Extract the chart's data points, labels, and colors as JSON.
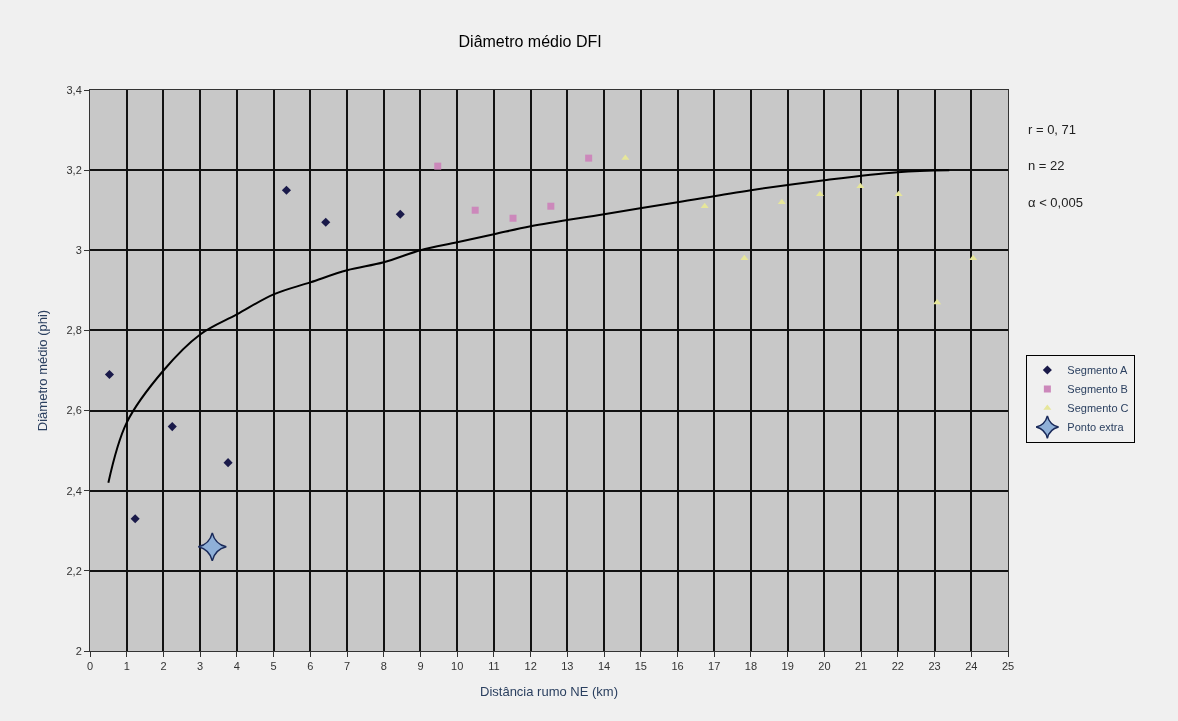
{
  "chart_data": {
    "type": "scatter",
    "title": "Diâmetro médio DFI",
    "xlabel": "Distância rumo NE (km)",
    "ylabel": "Diâmetro médio (phi)",
    "xlim": [
      0,
      25
    ],
    "xticks": [
      0,
      1,
      2,
      3,
      4,
      5,
      6,
      7,
      8,
      9,
      10,
      11,
      12,
      13,
      14,
      15,
      16,
      17,
      18,
      19,
      20,
      21,
      22,
      23,
      24,
      25
    ],
    "ylim": [
      2,
      3.4
    ],
    "yticks": [
      2,
      {
        "value": 2.2,
        "label": "2,2"
      },
      {
        "value": 2.4,
        "label": "2,4"
      },
      {
        "value": 2.6,
        "label": "2,6"
      },
      {
        "value": 2.8,
        "label": "2,8"
      },
      3,
      {
        "value": 3.2,
        "label": "3,2"
      },
      {
        "value": 3.4,
        "label": "3,4"
      }
    ],
    "grid": true,
    "legend": "right",
    "annotations": [
      "r = 0, 71",
      "n = 22",
      "α < 0,005"
    ],
    "series": [
      {
        "name": "Segmento A",
        "color": "#1a1a4a",
        "marker": "diamond",
        "x": [
          0.53,
          1.23,
          2.24,
          3.76,
          5.35,
          6.42,
          8.45
        ],
        "values": [
          2.69,
          2.33,
          2.56,
          2.47,
          3.15,
          3.07,
          3.09
        ]
      },
      {
        "name": "Segmento B",
        "color": "#cc88bb",
        "marker": "square",
        "x": [
          9.47,
          10.49,
          11.52,
          12.55,
          13.58
        ],
        "values": [
          3.21,
          3.1,
          3.08,
          3.11,
          3.23
        ]
      },
      {
        "name": "Segmento C",
        "color": "#e6e69a",
        "marker": "triangle",
        "x": [
          14.58,
          16.74,
          17.82,
          18.84,
          19.88,
          20.98,
          22.02,
          23.07,
          24.05
        ],
        "values": [
          3.23,
          3.11,
          2.98,
          3.12,
          3.14,
          3.16,
          3.14,
          2.87,
          2.98
        ]
      },
      {
        "name": "Ponto extra",
        "color": "#8fb0d8",
        "marker": "star",
        "x": [
          3.33
        ],
        "values": [
          2.26
        ]
      },
      {
        "type": "line",
        "color": "#000000",
        "marker": "none",
        "x": [
          0.5,
          1,
          2,
          3,
          4,
          5,
          6,
          7,
          8,
          9,
          10,
          11,
          12,
          14,
          16,
          18,
          20,
          22,
          23.4
        ],
        "values": [
          2.42,
          2.57,
          2.7,
          2.79,
          2.84,
          2.89,
          2.92,
          2.95,
          2.97,
          3.0,
          3.02,
          3.04,
          3.06,
          3.09,
          3.12,
          3.15,
          3.175,
          3.195,
          3.2
        ]
      }
    ]
  }
}
